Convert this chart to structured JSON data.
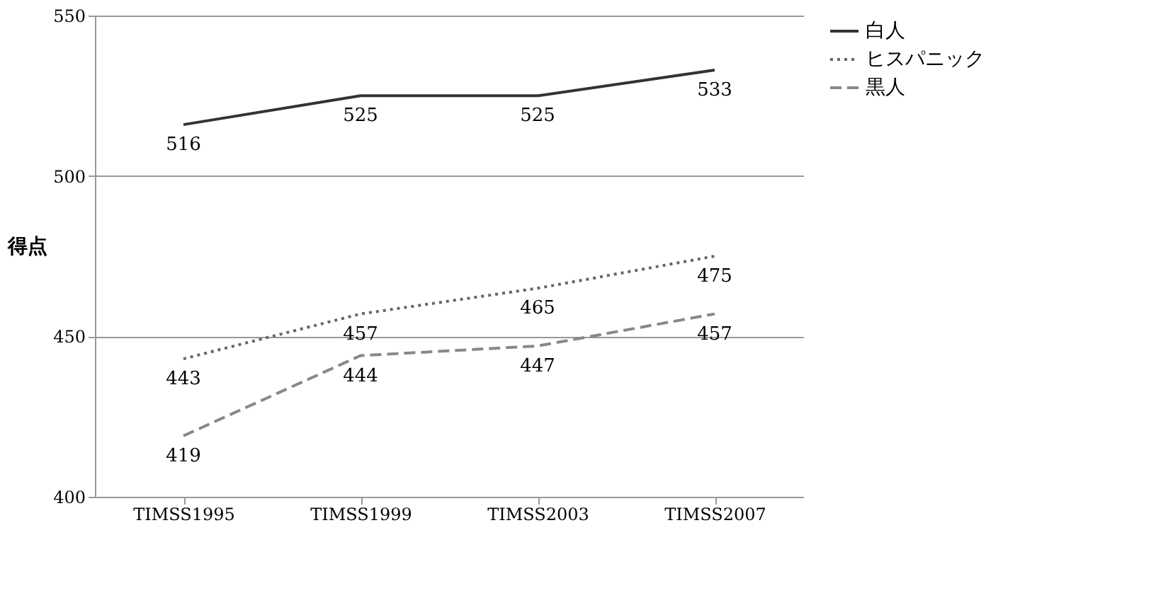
{
  "chart_data": {
    "type": "line",
    "categories": [
      "TIMSS1995",
      "TIMSS1999",
      "TIMSS2003",
      "TIMSS2007"
    ],
    "ylabel": "得点",
    "series": [
      {
        "name": "白人",
        "color": "#333333",
        "line_style": "solid",
        "values": [
          516,
          525,
          525,
          533
        ]
      },
      {
        "name": "ヒスパニック",
        "color": "#666666",
        "line_style": "dotted",
        "values": [
          443,
          457,
          465,
          475
        ]
      },
      {
        "name": "黒人",
        "color": "#888888",
        "line_style": "dashed",
        "values": [
          419,
          444,
          447,
          457
        ]
      }
    ],
    "ylim": [
      400,
      550
    ],
    "yticks": [
      400,
      450,
      500,
      550
    ],
    "grid": "y",
    "legend": "right",
    "data_labels": true
  }
}
